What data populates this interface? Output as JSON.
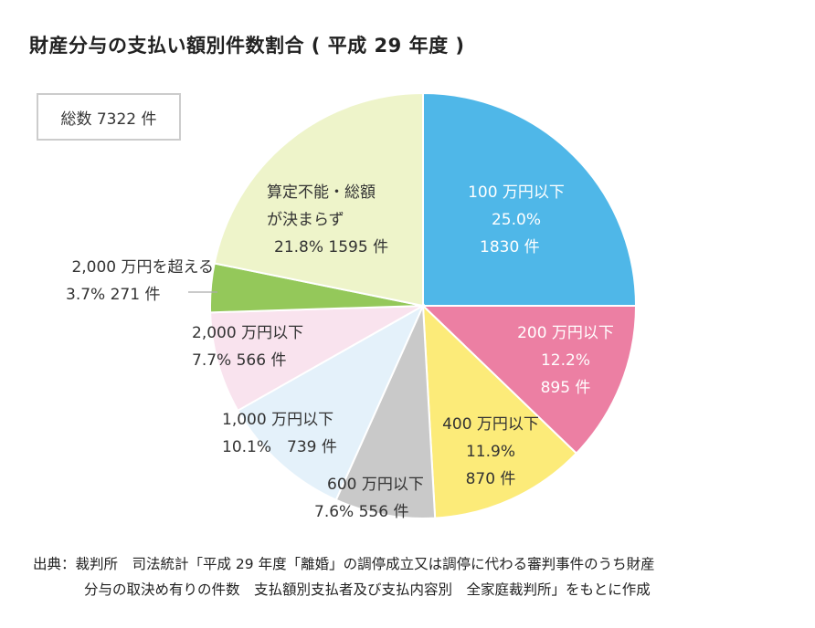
{
  "title": "財産分与の支払い額別件数割合 ( 平成 29 年度 )",
  "total_label": "総数 7322 件",
  "chart_data": {
    "type": "pie",
    "title": "財産分与の支払い額別件数割合 ( 平成 29 年度 )",
    "total": 7322,
    "start": "12 o'clock, clockwise",
    "slices": [
      {
        "label": "100 万円以下",
        "percent": 25.0,
        "count": 1830,
        "color": "#4fb7e8",
        "lines": [
          "100 万円以下",
          "25.0%",
          "1830 件"
        ]
      },
      {
        "label": "200 万円以下",
        "percent": 12.2,
        "count": 895,
        "color": "#ec7fa3",
        "lines": [
          "200 万円以下",
          "12.2%",
          "895 件"
        ]
      },
      {
        "label": "400 万円以下",
        "percent": 11.9,
        "count": 870,
        "color": "#fceb79",
        "lines": [
          "400 万円以下",
          "11.9%",
          "870 件"
        ]
      },
      {
        "label": "600 万円以下",
        "percent": 7.6,
        "count": 556,
        "color": "#c9c9c9",
        "lines": [
          "600 万円以下",
          "7.6% 556 件"
        ]
      },
      {
        "label": "1,000 万円以下",
        "percent": 10.1,
        "count": 739,
        "color": "#e4f1fa",
        "lines": [
          "1,000 万円以下",
          "10.1%　739 件"
        ]
      },
      {
        "label": "2,000 万円以下",
        "percent": 7.7,
        "count": 566,
        "color": "#f9e3ee",
        "lines": [
          "2,000 万円以下",
          "7.7% 566 件"
        ]
      },
      {
        "label": "2,000 万円を超える",
        "percent": 3.7,
        "count": 271,
        "color": "#94c85a",
        "lines": [
          "2,000 万円を超える",
          "3.7% 271 件"
        ]
      },
      {
        "label": "算定不能・総額が決まらず",
        "percent": 21.8,
        "count": 1595,
        "color": "#eef4ca",
        "lines": [
          "算定不能・総額",
          "が決まらず",
          "21.8% 1595 件"
        ]
      }
    ]
  },
  "source": {
    "line1": "出典：裁判所　司法統計「平成 29 年度「離婚」の調停成立又は調停に代わる審判事件のうち財産",
    "line2": "分与の取決め有りの件数　支払額別支払者及び支払内容別　全家庭裁判所」をもとに作成"
  }
}
